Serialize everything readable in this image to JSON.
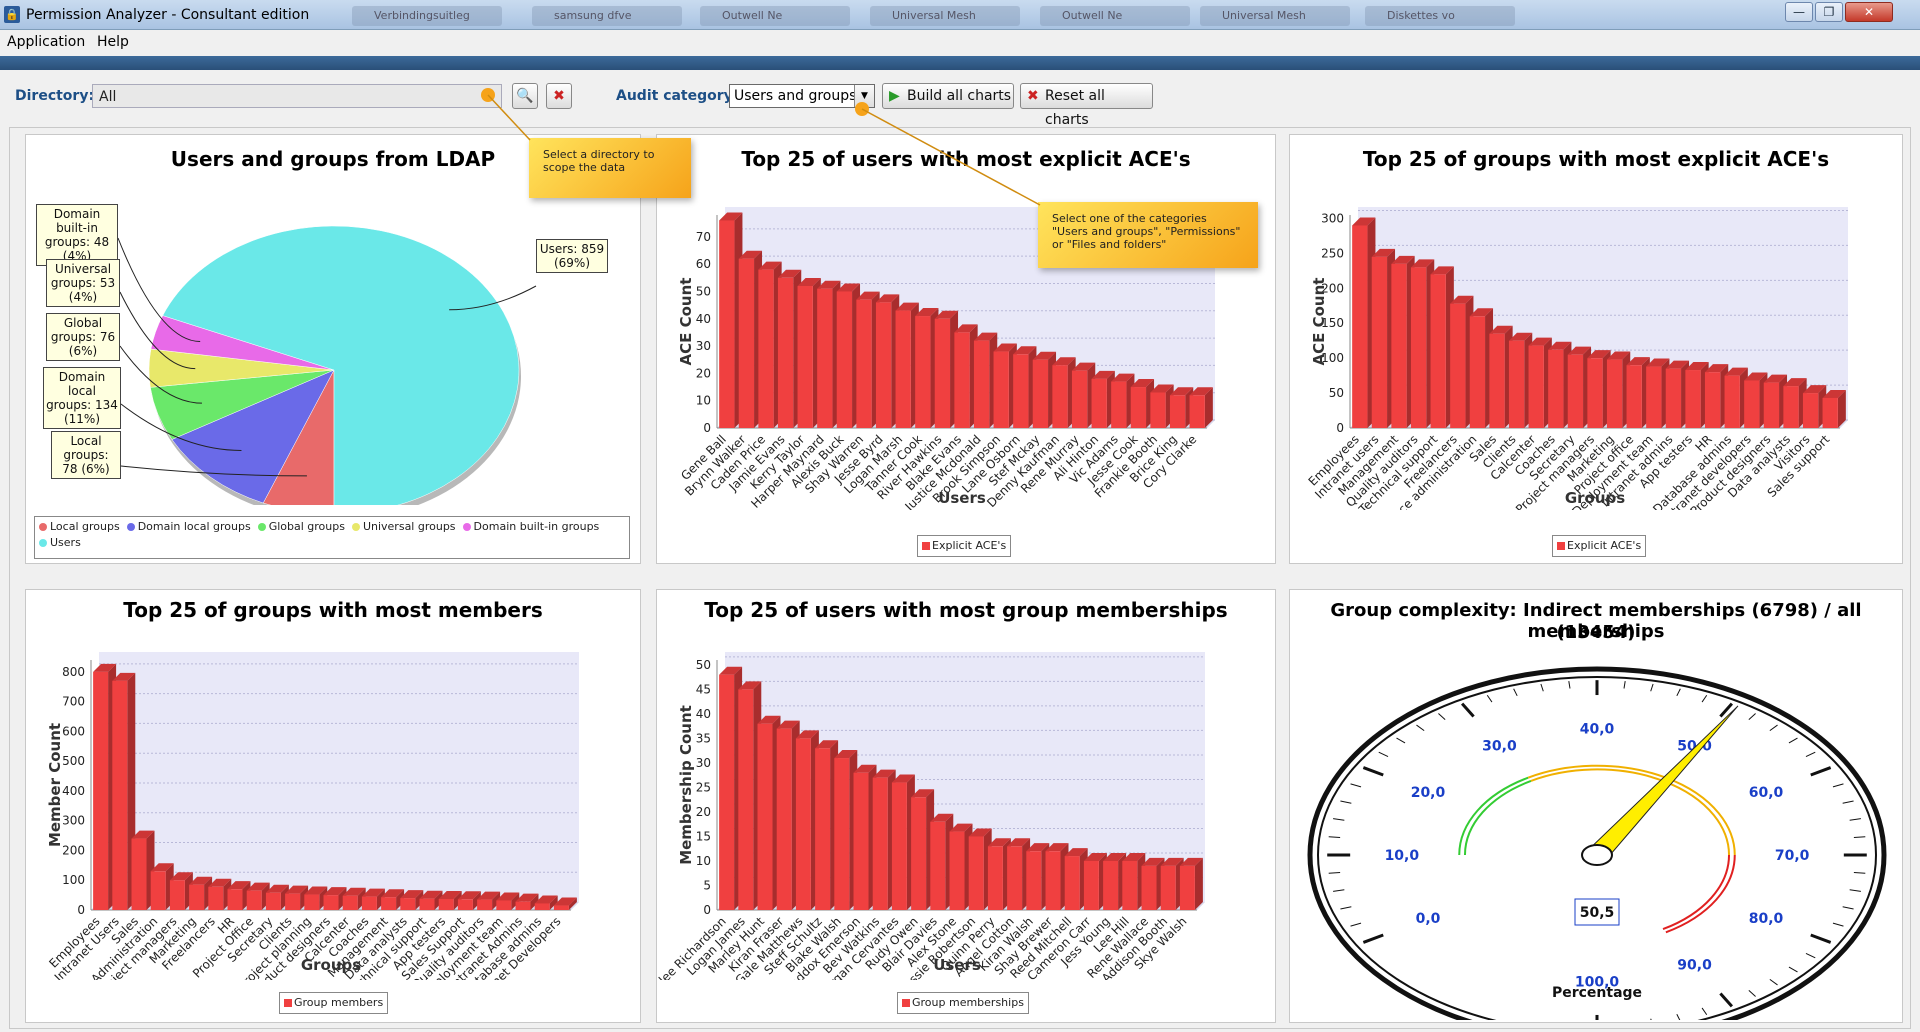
{
  "window": {
    "title": "Permission Analyzer - Consultant edition",
    "background_tabs": [
      "Verbindingsuitleg",
      "samsung dfve",
      "Outwell Ne",
      "Universal Mesh",
      "Outwell Ne",
      "Universal Mesh",
      "Diskettes vo"
    ],
    "controls": {
      "minimize": "—",
      "maximize": "❐",
      "close": "✕"
    }
  },
  "menu": [
    "Application",
    "Help"
  ],
  "toolbar": {
    "directory_label": "Directory:",
    "directory_value": "All",
    "audit_label": "Audit category:",
    "audit_value": "Users and groups",
    "build_label": "Build all charts",
    "reset_label": "Reset all charts"
  },
  "callouts": {
    "directory": "Select a directory to scope the data",
    "category": "Select one of the categories \"Users and groups\", \"Permissions\" or \"Files and folders\""
  },
  "colors": {
    "bar": "#f04040",
    "plot_bg": "#e8e8f8",
    "gauge_num": "#1a3fc7"
  },
  "charts": {
    "pie": {
      "title": "Users and groups from LDAP",
      "labels": [
        "Domain built-in groups: 48 (4%)",
        "Universal groups: 53 (4%)",
        "Global groups: 76 (6%)",
        "Domain local groups: 134 (11%)",
        "Local groups: 78 (6%)",
        "Users: 859 (69%)"
      ],
      "legend": [
        "Local groups",
        "Domain local groups",
        "Global groups",
        "Universal groups",
        "Domain built-in groups",
        "Users"
      ]
    },
    "users_ace": {
      "title": "Top 25 of users with most explicit ACE's",
      "xlabel": "Users",
      "ylabel": "ACE Count",
      "legend": "Explicit ACE's"
    },
    "groups_ace": {
      "title": "Top 25 of groups with most explicit ACE's",
      "xlabel": "Groups",
      "ylabel": "ACE Count",
      "legend": "Explicit ACE's"
    },
    "groups_members": {
      "title": "Top 25 of groups with most members",
      "xlabel": "Groups",
      "ylabel": "Member Count",
      "legend": "Group members"
    },
    "users_memberships": {
      "title": "Top 25 of users with most group memberships",
      "xlabel": "Users",
      "ylabel": "Membership Count",
      "legend": "Group memberships"
    },
    "gauge": {
      "title_line1": "Group complexity: Indirect memberships (6798) / all memberships",
      "title_line2": "(13454)",
      "value_label": "50,5",
      "axis_label": "Percentage"
    }
  },
  "chart_data": [
    {
      "type": "pie",
      "title": "Users and groups from LDAP",
      "categories": [
        "Local groups",
        "Domain local groups",
        "Global groups",
        "Universal groups",
        "Domain built-in groups",
        "Users"
      ],
      "values": [
        78,
        134,
        76,
        53,
        48,
        859
      ],
      "colors": [
        "#e86a6a",
        "#6a6ae8",
        "#6ae86a",
        "#e8e86a",
        "#e86ae8",
        "#6ae8e8"
      ]
    },
    {
      "type": "bar",
      "title": "Top 25 of users with most explicit ACE's",
      "xlabel": "Users",
      "ylabel": "ACE Count",
      "ylim": [
        0,
        78
      ],
      "yticks": [
        0,
        10,
        20,
        30,
        40,
        50,
        60,
        70
      ],
      "categories": [
        "Gene Ball",
        "Brynn Walker",
        "Caden Price",
        "Jamie Evans",
        "Kerry Taylor",
        "Harper Maynard",
        "Alexis Buck",
        "Shay Warren",
        "Jesse Byrd",
        "Logan Marsh",
        "Tanner Cook",
        "River Hawkins",
        "Blake Evans",
        "Justice Mcdonald",
        "Brook Simpson",
        "Lane Osborn",
        "Stef Mckay",
        "Denny Kaufman",
        "Rene Murray",
        "Ali Hinton",
        "Vic Adams",
        "Jesse Cook",
        "Frankie Booth",
        "Brice King",
        "Cory Clarke"
      ],
      "values": [
        76,
        62,
        58,
        55,
        52,
        51,
        50,
        47,
        46,
        43,
        41,
        40,
        35,
        32,
        28,
        27,
        25,
        23,
        21,
        18,
        17,
        15,
        13,
        12,
        12
      ],
      "series": [
        {
          "name": "Explicit ACE's"
        }
      ]
    },
    {
      "type": "bar",
      "title": "Top 25 of groups with most explicit ACE's",
      "xlabel": "Groups",
      "ylabel": "ACE Count",
      "ylim": [
        0,
        305
      ],
      "yticks": [
        0,
        50,
        100,
        150,
        200,
        250,
        300
      ],
      "categories": [
        "Employees",
        "Intranet users",
        "Management",
        "Quality auditors",
        "Technical support",
        "Freelancers",
        "Finance administration",
        "Sales",
        "Clients",
        "Calcenter",
        "Coaches",
        "Secretary",
        "Project managers",
        "Marketing",
        "Project office",
        "Deployment team",
        "Intranet admins",
        "App testers",
        "HR",
        "Database admins",
        "Intranet developers",
        "Product designers",
        "Data analysts",
        "Visitors",
        "Sales support"
      ],
      "values": [
        290,
        245,
        235,
        230,
        220,
        178,
        160,
        135,
        125,
        118,
        112,
        105,
        100,
        98,
        90,
        88,
        85,
        83,
        80,
        75,
        68,
        65,
        60,
        50,
        43
      ],
      "series": [
        {
          "name": "Explicit ACE's"
        }
      ]
    },
    {
      "type": "bar",
      "title": "Top 25 of groups with most members",
      "xlabel": "Groups",
      "ylabel": "Member Count",
      "ylim": [
        0,
        840
      ],
      "yticks": [
        0,
        100,
        200,
        300,
        400,
        500,
        600,
        700,
        800
      ],
      "categories": [
        "Employees",
        "Intranet Users",
        "Sales",
        "Finance Administration",
        "Project managers",
        "Marketing",
        "Freelancers",
        "HR",
        "Project Office",
        "Secretary",
        "Clients",
        "Project planning",
        "Product designers",
        "Calcenter",
        "Coaches",
        "Management",
        "Data analysts",
        "Technical support",
        "App testers",
        "Sales Support",
        "Quality auditors",
        "Deployment team",
        "Intranet Admins",
        "Database admins",
        "Intranet Developers"
      ],
      "values": [
        800,
        770,
        240,
        130,
        100,
        85,
        78,
        70,
        65,
        58,
        55,
        52,
        50,
        48,
        45,
        43,
        40,
        38,
        37,
        36,
        35,
        32,
        28,
        22,
        15
      ],
      "series": [
        {
          "name": "Group members"
        }
      ]
    },
    {
      "type": "bar",
      "title": "Top 25 of users with most group memberships",
      "xlabel": "Users",
      "ylabel": "Membership Count",
      "ylim": [
        0,
        51
      ],
      "yticks": [
        0,
        5,
        10,
        15,
        20,
        25,
        30,
        35,
        40,
        45,
        50
      ],
      "categories": [
        "Raylee Richardson",
        "Logan James",
        "Marley Hunt",
        "Kiran Fraser",
        "Gale Matthews",
        "Steff Schultz",
        "Blake Walsh",
        "Maddox Emerson",
        "Bev Watkins",
        "Morgan Cervantes",
        "Rudy Owen",
        "Blair Davies",
        "Alex Stone",
        "Jessie Robertson",
        "Quinn Perry",
        "Angel Cotton",
        "Kiran Walsh",
        "Shay Brewer",
        "Reed Mitchell",
        "Cameron Carr",
        "Jess Young",
        "Lee Hill",
        "Rene Wallace",
        "Addison Booth",
        "Skye Walsh"
      ],
      "values": [
        48,
        45,
        38,
        37,
        35,
        33,
        31,
        28,
        27,
        26,
        23,
        18,
        16,
        15,
        13,
        13,
        12,
        12,
        11,
        10,
        10,
        10,
        9,
        9,
        9
      ],
      "series": [
        {
          "name": "Group memberships"
        }
      ]
    },
    {
      "type": "gauge",
      "title": "Group complexity: Indirect memberships (6798) / all memberships (13454)",
      "value": 50.5,
      "range": [
        0,
        100
      ],
      "major_ticks": [
        "0,0",
        "10,0",
        "20,0",
        "30,0",
        "40,0",
        "50,0",
        "60,0",
        "70,0",
        "80,0",
        "90,0",
        "100,0"
      ],
      "xlabel": "Percentage"
    }
  ]
}
